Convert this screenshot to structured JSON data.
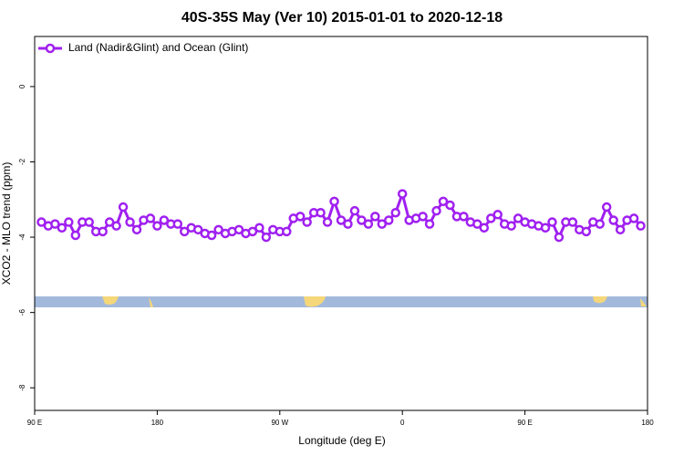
{
  "chart_data": {
    "type": "line",
    "title": "40S-35S May (Ver 10)   2015-01-01 to 2020-12-18",
    "x_label": "Longitude (deg E)",
    "y_label": "XCO2 - MLO trend (ppm)",
    "xlim": [
      90,
      540
    ],
    "ylim": [
      -8.6,
      1.33
    ],
    "xticks": [
      {
        "value": 90,
        "label": "90 E"
      },
      180,
      {
        "value": 270,
        "label": "90 W"
      },
      {
        "value": 360,
        "label": "0"
      },
      {
        "value": 450,
        "label": "90 E"
      },
      {
        "value": 540,
        "label": "180"
      }
    ],
    "yticks": [
      0,
      -2,
      -4,
      -6,
      -8
    ],
    "legend": "top-left",
    "x": [
      95,
      100,
      105,
      110,
      115,
      120,
      125,
      130,
      135,
      140,
      145,
      150,
      155,
      160,
      165,
      170,
      175,
      180,
      185,
      190,
      195,
      200,
      205,
      210,
      215,
      220,
      225,
      230,
      235,
      240,
      245,
      250,
      255,
      260,
      265,
      270,
      275,
      280,
      285,
      290,
      295,
      300,
      305,
      310,
      315,
      320,
      325,
      330,
      335,
      340,
      345,
      350,
      355,
      360,
      365,
      370,
      375,
      380,
      385,
      390,
      395,
      400,
      405,
      410,
      415,
      420,
      425,
      430,
      435,
      440,
      445,
      450,
      455,
      460,
      465,
      470,
      475,
      480,
      485,
      490,
      495,
      500,
      505,
      510,
      515,
      520,
      525,
      530,
      535
    ],
    "series": [
      {
        "name": "Land (Nadir&Glint) and Ocean (Glint)",
        "color": "#a020f0",
        "values": [
          -3.6,
          -3.7,
          -3.65,
          -3.75,
          -3.6,
          -3.95,
          -3.6,
          -3.6,
          -3.85,
          -3.85,
          -3.6,
          -3.7,
          -3.2,
          -3.6,
          -3.8,
          -3.55,
          -3.5,
          -3.7,
          -3.55,
          -3.65,
          -3.65,
          -3.85,
          -3.75,
          -3.8,
          -3.9,
          -3.95,
          -3.8,
          -3.9,
          -3.85,
          -3.8,
          -3.9,
          -3.85,
          -3.75,
          -4.0,
          -3.8,
          -3.85,
          -3.85,
          -3.5,
          -3.45,
          -3.6,
          -3.35,
          -3.35,
          -3.6,
          -3.05,
          -3.55,
          -3.65,
          -3.3,
          -3.55,
          -3.65,
          -3.45,
          -3.65,
          -3.55,
          -3.35,
          -2.85,
          -3.55,
          -3.5,
          -3.45,
          -3.65,
          -3.3,
          -3.05,
          -3.15,
          -3.45,
          -3.45,
          -3.6,
          -3.65,
          -3.75,
          -3.5,
          -3.4,
          -3.65,
          -3.7,
          -3.5,
          -3.6,
          -3.65,
          -3.7,
          -3.75,
          -3.6,
          -4.0,
          -3.6,
          -3.6,
          -3.8,
          -3.85,
          -3.6,
          -3.65,
          -3.2,
          -3.55,
          -3.8,
          -3.55,
          -3.5,
          -3.7
        ]
      }
    ]
  }
}
